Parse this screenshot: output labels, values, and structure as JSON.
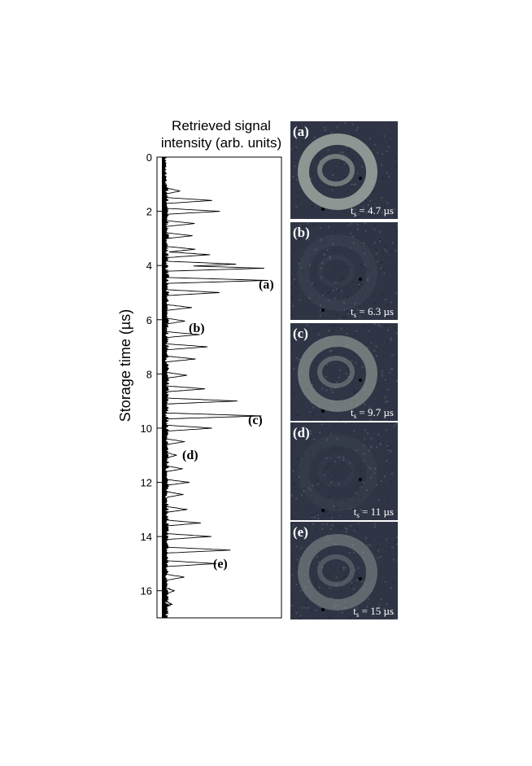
{
  "chart_data": {
    "type": "line",
    "orientation": "vertical",
    "xlabel": "Retrieved signal intensity (arb. units)",
    "ylabel": "Storage time (µs)",
    "ylim": [
      0,
      17
    ],
    "yticks": [
      0,
      2,
      4,
      6,
      8,
      10,
      12,
      14,
      16
    ],
    "grid": false,
    "peaks": [
      {
        "t": 1.25,
        "v": 0.14
      },
      {
        "t": 1.6,
        "v": 0.45
      },
      {
        "t": 2.0,
        "v": 0.52
      },
      {
        "t": 2.45,
        "v": 0.28
      },
      {
        "t": 2.9,
        "v": 0.25
      },
      {
        "t": 3.4,
        "v": 0.28
      },
      {
        "t": 3.6,
        "v": 0.42
      },
      {
        "t": 3.95,
        "v": 0.68
      },
      {
        "t": 4.1,
        "v": 0.95
      },
      {
        "t": 4.55,
        "v": 0.98
      },
      {
        "t": 5.0,
        "v": 0.52
      },
      {
        "t": 5.55,
        "v": 0.25
      },
      {
        "t": 6.05,
        "v": 0.18
      },
      {
        "t": 6.55,
        "v": 0.32
      },
      {
        "t": 7.0,
        "v": 0.4
      },
      {
        "t": 7.45,
        "v": 0.28
      },
      {
        "t": 8.05,
        "v": 0.2
      },
      {
        "t": 8.55,
        "v": 0.38
      },
      {
        "t": 9.0,
        "v": 0.68
      },
      {
        "t": 9.55,
        "v": 0.92
      },
      {
        "t": 10.0,
        "v": 0.45
      },
      {
        "t": 10.5,
        "v": 0.18
      },
      {
        "t": 11.0,
        "v": 0.1
      },
      {
        "t": 11.5,
        "v": 0.16
      },
      {
        "t": 12.0,
        "v": 0.22
      },
      {
        "t": 12.45,
        "v": 0.16
      },
      {
        "t": 13.0,
        "v": 0.2
      },
      {
        "t": 13.5,
        "v": 0.33
      },
      {
        "t": 14.0,
        "v": 0.43
      },
      {
        "t": 14.5,
        "v": 0.62
      },
      {
        "t": 15.0,
        "v": 0.48
      },
      {
        "t": 15.5,
        "v": 0.18
      },
      {
        "t": 16.0,
        "v": 0.08
      },
      {
        "t": 16.5,
        "v": 0.05
      }
    ],
    "annotations": [
      {
        "label": "(a)",
        "t": 4.7
      },
      {
        "label": "(b)",
        "t": 6.3
      },
      {
        "label": "(c)",
        "t": 9.7
      },
      {
        "label": "(d)",
        "t": 11.0
      },
      {
        "label": "(e)",
        "t": 15.0
      }
    ]
  },
  "panels": [
    {
      "letter": "(a)",
      "caption_prefix": "t",
      "caption_sub": "s",
      "caption_value": " = 4.7 µs",
      "ring": 0.85
    },
    {
      "letter": "(b)",
      "caption_prefix": "t",
      "caption_sub": "s",
      "caption_value": " = 6.3 µs",
      "ring": 0.08
    },
    {
      "letter": "(c)",
      "caption_prefix": "t",
      "caption_sub": "s",
      "caption_value": " = 9.7 µs",
      "ring": 0.6
    },
    {
      "letter": "(d)",
      "caption_prefix": "t",
      "caption_sub": "s",
      "caption_value": " = 11 µs",
      "ring": 0.05
    },
    {
      "letter": "(e)",
      "caption_prefix": "t",
      "caption_sub": "s",
      "caption_value": " = 15 µs",
      "ring": 0.45
    }
  ],
  "colors": {
    "panel_bg": "#2f3545",
    "ring": "#9ea7a0"
  }
}
